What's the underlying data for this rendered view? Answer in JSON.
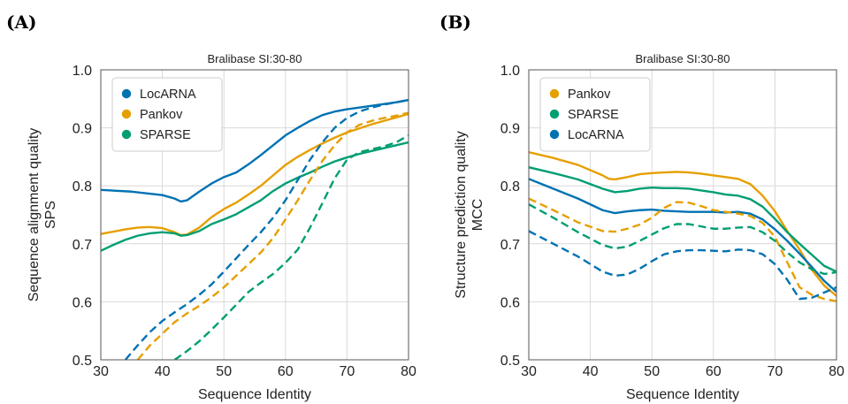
{
  "chart_data": [
    {
      "panel": "(A)",
      "type": "line",
      "title": "Bralibase SI:30-80",
      "xlabel": "Sequence Identity",
      "ylabel": [
        "Sequence alignment quality",
        "SPS"
      ],
      "xlim": [
        30,
        80
      ],
      "ylim": [
        0.5,
        1.0
      ],
      "xticks": [
        30,
        40,
        50,
        60,
        70,
        80
      ],
      "yticks": [
        0.5,
        0.6,
        0.7,
        0.8,
        0.9,
        1.0
      ],
      "grid": true,
      "legend": "top-left",
      "legend_order": [
        "LocARNA",
        "Pankov",
        "SPARSE"
      ],
      "series": [
        {
          "name": "LocARNA",
          "color": "#0072b2",
          "style": "solid",
          "x": [
            30,
            35,
            40,
            42,
            43,
            44,
            46,
            48,
            50,
            52,
            54,
            56,
            58,
            60,
            62,
            64,
            66,
            68,
            70,
            72,
            74,
            76,
            78,
            80
          ],
          "y": [
            0.793,
            0.79,
            0.784,
            0.778,
            0.773,
            0.775,
            0.79,
            0.804,
            0.815,
            0.823,
            0.837,
            0.853,
            0.87,
            0.887,
            0.9,
            0.912,
            0.922,
            0.928,
            0.932,
            0.935,
            0.938,
            0.941,
            0.944,
            0.948
          ]
        },
        {
          "name": "Pankov",
          "color": "#e69f00",
          "style": "solid",
          "x": [
            30,
            32,
            34,
            36,
            38,
            40,
            42,
            43,
            44,
            46,
            48,
            50,
            52,
            54,
            56,
            58,
            60,
            62,
            64,
            66,
            68,
            70,
            72,
            74,
            76,
            78,
            80
          ],
          "y": [
            0.717,
            0.721,
            0.725,
            0.728,
            0.729,
            0.727,
            0.72,
            0.715,
            0.716,
            0.728,
            0.746,
            0.76,
            0.771,
            0.785,
            0.8,
            0.818,
            0.836,
            0.85,
            0.862,
            0.873,
            0.883,
            0.892,
            0.899,
            0.906,
            0.912,
            0.918,
            0.924
          ]
        },
        {
          "name": "SPARSE",
          "color": "#009e73",
          "style": "solid",
          "x": [
            30,
            32,
            34,
            36,
            38,
            40,
            42,
            43,
            44,
            46,
            48,
            50,
            52,
            54,
            56,
            58,
            60,
            62,
            64,
            66,
            68,
            70,
            72,
            74,
            76,
            78,
            80
          ],
          "y": [
            0.688,
            0.698,
            0.707,
            0.714,
            0.718,
            0.72,
            0.718,
            0.714,
            0.715,
            0.722,
            0.734,
            0.742,
            0.751,
            0.763,
            0.775,
            0.791,
            0.804,
            0.814,
            0.823,
            0.833,
            0.842,
            0.849,
            0.855,
            0.86,
            0.865,
            0.87,
            0.875
          ]
        },
        {
          "name": "LocARNA",
          "color": "#0072b2",
          "style": "dashed",
          "x": [
            34,
            36,
            38,
            40,
            42,
            44,
            46,
            48,
            50,
            52,
            54,
            56,
            58,
            60,
            62,
            64,
            66,
            68,
            70,
            72,
            74,
            76,
            78,
            80
          ],
          "y": [
            0.5,
            0.525,
            0.548,
            0.567,
            0.582,
            0.596,
            0.612,
            0.63,
            0.652,
            0.675,
            0.698,
            0.72,
            0.745,
            0.775,
            0.81,
            0.845,
            0.875,
            0.9,
            0.917,
            0.928,
            0.935,
            0.94,
            0.944,
            0.948
          ]
        },
        {
          "name": "Pankov",
          "color": "#e69f00",
          "style": "dashed",
          "x": [
            36,
            38,
            40,
            42,
            44,
            46,
            48,
            50,
            52,
            54,
            56,
            58,
            60,
            62,
            64,
            66,
            68,
            70,
            72,
            74,
            76,
            78,
            80
          ],
          "y": [
            0.5,
            0.525,
            0.545,
            0.565,
            0.58,
            0.593,
            0.608,
            0.625,
            0.645,
            0.665,
            0.685,
            0.71,
            0.742,
            0.775,
            0.81,
            0.843,
            0.87,
            0.892,
            0.905,
            0.912,
            0.917,
            0.921,
            0.926
          ]
        },
        {
          "name": "SPARSE",
          "color": "#009e73",
          "style": "dashed",
          "x": [
            42,
            44,
            46,
            48,
            50,
            52,
            54,
            56,
            58,
            60,
            62,
            64,
            66,
            68,
            70,
            72,
            74,
            76,
            78,
            80
          ],
          "y": [
            0.5,
            0.515,
            0.532,
            0.552,
            0.573,
            0.595,
            0.617,
            0.633,
            0.648,
            0.667,
            0.69,
            0.728,
            0.77,
            0.813,
            0.845,
            0.858,
            0.863,
            0.868,
            0.875,
            0.887
          ]
        }
      ]
    },
    {
      "panel": "(B)",
      "type": "line",
      "title": "Bralibase SI:30-80",
      "xlabel": "Sequence Identity",
      "ylabel": [
        "Structure prediction quality",
        "MCC"
      ],
      "xlim": [
        30,
        80
      ],
      "ylim": [
        0.5,
        1.0
      ],
      "xticks": [
        30,
        40,
        50,
        60,
        70,
        80
      ],
      "yticks": [
        0.5,
        0.6,
        0.7,
        0.8,
        0.9,
        1.0
      ],
      "grid": true,
      "legend": "top-left",
      "legend_order": [
        "Pankov",
        "SPARSE",
        "LocARNA"
      ],
      "series": [
        {
          "name": "Pankov",
          "color": "#e69f00",
          "style": "solid",
          "x": [
            30,
            34,
            38,
            42,
            43,
            44,
            46,
            48,
            50,
            52,
            54,
            56,
            58,
            60,
            62,
            64,
            66,
            68,
            70,
            72,
            74,
            76,
            78,
            80
          ],
          "y": [
            0.858,
            0.848,
            0.836,
            0.818,
            0.812,
            0.811,
            0.815,
            0.82,
            0.822,
            0.823,
            0.824,
            0.823,
            0.821,
            0.818,
            0.815,
            0.812,
            0.803,
            0.783,
            0.756,
            0.722,
            0.69,
            0.655,
            0.628,
            0.61
          ]
        },
        {
          "name": "SPARSE",
          "color": "#009e73",
          "style": "solid",
          "x": [
            30,
            34,
            38,
            42,
            44,
            46,
            48,
            50,
            52,
            54,
            56,
            58,
            60,
            62,
            64,
            66,
            68,
            70,
            72,
            74,
            76,
            78,
            80
          ],
          "y": [
            0.832,
            0.822,
            0.811,
            0.795,
            0.789,
            0.791,
            0.795,
            0.797,
            0.796,
            0.796,
            0.795,
            0.792,
            0.789,
            0.785,
            0.783,
            0.777,
            0.764,
            0.743,
            0.72,
            0.7,
            0.681,
            0.662,
            0.652
          ]
        },
        {
          "name": "LocARNA",
          "color": "#0072b2",
          "style": "solid",
          "x": [
            30,
            34,
            38,
            42,
            44,
            46,
            48,
            50,
            52,
            54,
            56,
            58,
            60,
            62,
            64,
            66,
            68,
            70,
            72,
            74,
            76,
            78,
            80
          ],
          "y": [
            0.812,
            0.795,
            0.778,
            0.758,
            0.753,
            0.756,
            0.758,
            0.759,
            0.757,
            0.756,
            0.755,
            0.755,
            0.755,
            0.754,
            0.755,
            0.752,
            0.742,
            0.725,
            0.705,
            0.683,
            0.66,
            0.636,
            0.617
          ]
        },
        {
          "name": "Pankov",
          "color": "#e69f00",
          "style": "dashed",
          "x": [
            30,
            34,
            38,
            42,
            44,
            46,
            48,
            50,
            52,
            54,
            56,
            58,
            60,
            62,
            64,
            66,
            68,
            70,
            72,
            74,
            76,
            78,
            80
          ],
          "y": [
            0.778,
            0.758,
            0.737,
            0.722,
            0.721,
            0.726,
            0.733,
            0.745,
            0.762,
            0.772,
            0.771,
            0.765,
            0.758,
            0.755,
            0.752,
            0.748,
            0.736,
            0.712,
            0.668,
            0.625,
            0.612,
            0.605,
            0.601
          ]
        },
        {
          "name": "SPARSE",
          "color": "#009e73",
          "style": "dashed",
          "x": [
            30,
            34,
            38,
            42,
            44,
            46,
            48,
            50,
            52,
            54,
            56,
            58,
            60,
            62,
            64,
            66,
            68,
            70,
            72,
            74,
            76,
            78,
            80
          ],
          "y": [
            0.768,
            0.745,
            0.72,
            0.698,
            0.692,
            0.695,
            0.705,
            0.716,
            0.727,
            0.734,
            0.734,
            0.73,
            0.726,
            0.726,
            0.728,
            0.729,
            0.72,
            0.705,
            0.685,
            0.668,
            0.656,
            0.648,
            0.651
          ]
        },
        {
          "name": "LocARNA",
          "color": "#0072b2",
          "style": "dashed",
          "x": [
            30,
            34,
            38,
            42,
            44,
            46,
            48,
            50,
            52,
            54,
            56,
            58,
            60,
            62,
            64,
            66,
            68,
            70,
            72,
            74,
            76,
            78,
            80
          ],
          "y": [
            0.722,
            0.7,
            0.678,
            0.652,
            0.645,
            0.647,
            0.657,
            0.67,
            0.682,
            0.687,
            0.689,
            0.689,
            0.688,
            0.687,
            0.69,
            0.689,
            0.682,
            0.665,
            0.638,
            0.605,
            0.607,
            0.616,
            0.625
          ]
        }
      ]
    }
  ]
}
